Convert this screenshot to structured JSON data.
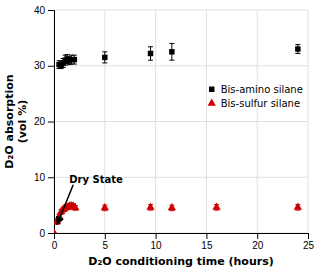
{
  "chart_data": {
    "type": "scatter",
    "title": "",
    "xlabel": "D₂O conditioning time (hours)",
    "ylabel": "D₂O absorption\n(vol %)",
    "xlim": [
      0,
      25
    ],
    "ylim": [
      0,
      40
    ],
    "xticks": [
      0,
      5,
      10,
      15,
      20,
      25
    ],
    "yticks": [
      0,
      10,
      20,
      30,
      40
    ],
    "grid": true,
    "legend": "right",
    "series": [
      {
        "name": "Bis-amino silane",
        "color": "#000000",
        "marker": "square",
        "x": [
          0.5,
          0.7,
          0.9,
          1.1,
          1.3,
          1.5,
          1.7,
          2.0,
          5.0,
          9.5,
          11.6,
          24.0
        ],
        "values": [
          30.2,
          30.1,
          30.5,
          31.0,
          31.2,
          30.9,
          31.1,
          31.1,
          31.5,
          32.2,
          32.5,
          33.0
        ],
        "errors": [
          0.7,
          0.6,
          0.8,
          0.9,
          0.8,
          0.7,
          0.8,
          0.8,
          1.0,
          1.2,
          1.5,
          0.8
        ]
      },
      {
        "name": "Bis-sulfur silane",
        "color": "#cc0000",
        "marker": "triangle",
        "x": [
          0.0,
          0.3,
          0.5,
          0.7,
          0.9,
          1.1,
          1.3,
          1.5,
          1.7,
          1.9,
          2.1,
          5.0,
          9.5,
          11.6,
          16.0,
          24.0
        ],
        "values": [
          0.0,
          2.0,
          3.0,
          3.8,
          4.2,
          4.5,
          4.6,
          4.8,
          4.9,
          4.8,
          4.5,
          4.5,
          4.6,
          4.5,
          4.6,
          4.6
        ],
        "errors": [
          0.0,
          0.4,
          0.4,
          0.45,
          0.45,
          0.5,
          0.45,
          0.5,
          0.5,
          0.45,
          0.4,
          0.5,
          0.5,
          0.5,
          0.5,
          0.5
        ]
      }
    ],
    "annotations": [
      {
        "text": "Dry State",
        "x": 1.5,
        "y": 9.0,
        "arrow_x": 0.3,
        "arrow_y": 1.5
      }
    ]
  }
}
